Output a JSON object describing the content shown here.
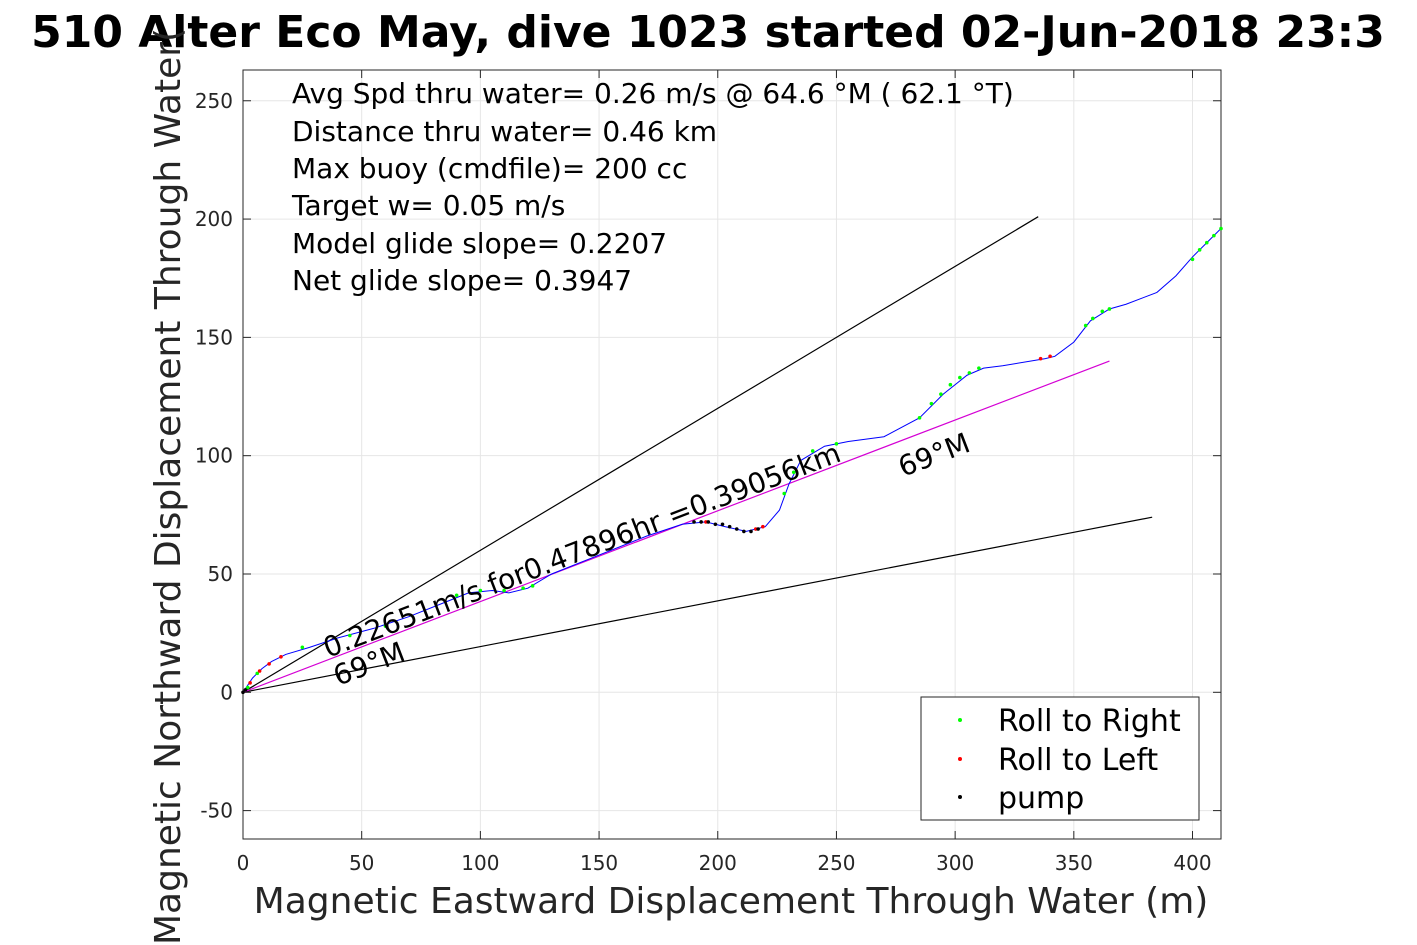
{
  "chart_data": {
    "type": "scatter",
    "title": "510 Alter Eco May, dive 1023 started 02-Jun-2018 23:3",
    "xlabel": "Magnetic Eastward Displacement Through Water (m)",
    "ylabel": "Magnetic Northward Displacement Through Water(",
    "xlim": [
      0,
      412
    ],
    "ylim": [
      -62,
      263
    ],
    "xticks": [
      0,
      50,
      100,
      150,
      200,
      250,
      300,
      350,
      400
    ],
    "yticks": [
      -50,
      0,
      50,
      100,
      150,
      200,
      250
    ],
    "grid": true,
    "legend_location": "bottom-right",
    "stats_text": [
      "Avg Spd thru water=  0.26 m/s @  64.6 °M ( 62.1 °T)",
      "Distance thru water=  0.46 km",
      "Max buoy (cmdfile)= 200 cc",
      "Target w= 0.05 m/s",
      "Model glide slope= 0.2207",
      "Net glide slope= 0.3947"
    ],
    "annotations": {
      "speed_text": "0.22651m/s for0.47896hr =0.39056km",
      "heading_lower": "69°M",
      "heading_upper": "69°M"
    },
    "reference_lines": [
      {
        "from": [
          0,
          0
        ],
        "to": [
          335,
          201
        ],
        "color": "#000000"
      },
      {
        "from": [
          0,
          0
        ],
        "to": [
          383,
          74
        ],
        "color": "#000000"
      },
      {
        "from": [
          0,
          0
        ],
        "to": [
          365,
          140
        ],
        "color": "#d400d4"
      }
    ],
    "track": {
      "color": "#0000ff",
      "points": [
        [
          0,
          0
        ],
        [
          4,
          6
        ],
        [
          8,
          10
        ],
        [
          12,
          13
        ],
        [
          18,
          16
        ],
        [
          28,
          19
        ],
        [
          40,
          23
        ],
        [
          55,
          27
        ],
        [
          70,
          32
        ],
        [
          85,
          38
        ],
        [
          95,
          42
        ],
        [
          105,
          43
        ],
        [
          112,
          42
        ],
        [
          120,
          44
        ],
        [
          130,
          50
        ],
        [
          150,
          58
        ],
        [
          170,
          66
        ],
        [
          185,
          71
        ],
        [
          195,
          72
        ],
        [
          203,
          70
        ],
        [
          212,
          68
        ],
        [
          220,
          70
        ],
        [
          226,
          77
        ],
        [
          230,
          88
        ],
        [
          235,
          98
        ],
        [
          245,
          104
        ],
        [
          255,
          106
        ],
        [
          270,
          108
        ],
        [
          285,
          116
        ],
        [
          295,
          126
        ],
        [
          305,
          134
        ],
        [
          312,
          137
        ],
        [
          320,
          138
        ],
        [
          338,
          141
        ],
        [
          342,
          142
        ],
        [
          350,
          148
        ],
        [
          357,
          157
        ],
        [
          365,
          162
        ],
        [
          372,
          164
        ],
        [
          385,
          169
        ],
        [
          393,
          176
        ],
        [
          400,
          184
        ],
        [
          407,
          191
        ],
        [
          412,
          196
        ]
      ]
    },
    "series": [
      {
        "name": "Roll to Right",
        "color": "#00ff00",
        "points": [
          [
            2,
            2
          ],
          [
            6,
            8
          ],
          [
            25,
            19
          ],
          [
            45,
            24
          ],
          [
            60,
            28
          ],
          [
            90,
            41
          ],
          [
            100,
            43
          ],
          [
            110,
            43
          ],
          [
            118,
            44
          ],
          [
            122,
            45
          ],
          [
            228,
            84
          ],
          [
            232,
            93
          ],
          [
            240,
            102
          ],
          [
            250,
            105
          ],
          [
            285,
            116
          ],
          [
            290,
            122
          ],
          [
            294,
            126
          ],
          [
            298,
            130
          ],
          [
            302,
            133
          ],
          [
            306,
            135
          ],
          [
            310,
            137
          ],
          [
            355,
            155
          ],
          [
            358,
            158
          ],
          [
            362,
            161
          ],
          [
            365,
            162
          ],
          [
            400,
            183
          ],
          [
            403,
            187
          ],
          [
            406,
            190
          ],
          [
            409,
            193
          ],
          [
            412,
            196
          ]
        ]
      },
      {
        "name": "Roll to Left",
        "color": "#ff0000",
        "points": [
          [
            3,
            4
          ],
          [
            7,
            9
          ],
          [
            11,
            12
          ],
          [
            16,
            15
          ],
          [
            195,
            72
          ],
          [
            216,
            69
          ],
          [
            219,
            70
          ],
          [
            336,
            141
          ],
          [
            340,
            142
          ]
        ]
      },
      {
        "name": "pump",
        "color": "#000000",
        "points": [
          [
            0,
            0
          ],
          [
            1,
            1
          ],
          [
            190,
            72
          ],
          [
            193,
            72
          ],
          [
            196,
            72
          ],
          [
            199,
            71
          ],
          [
            202,
            71
          ],
          [
            205,
            70
          ],
          [
            208,
            69
          ],
          [
            211,
            68
          ],
          [
            214,
            68
          ],
          [
            217,
            69
          ]
        ]
      }
    ]
  }
}
